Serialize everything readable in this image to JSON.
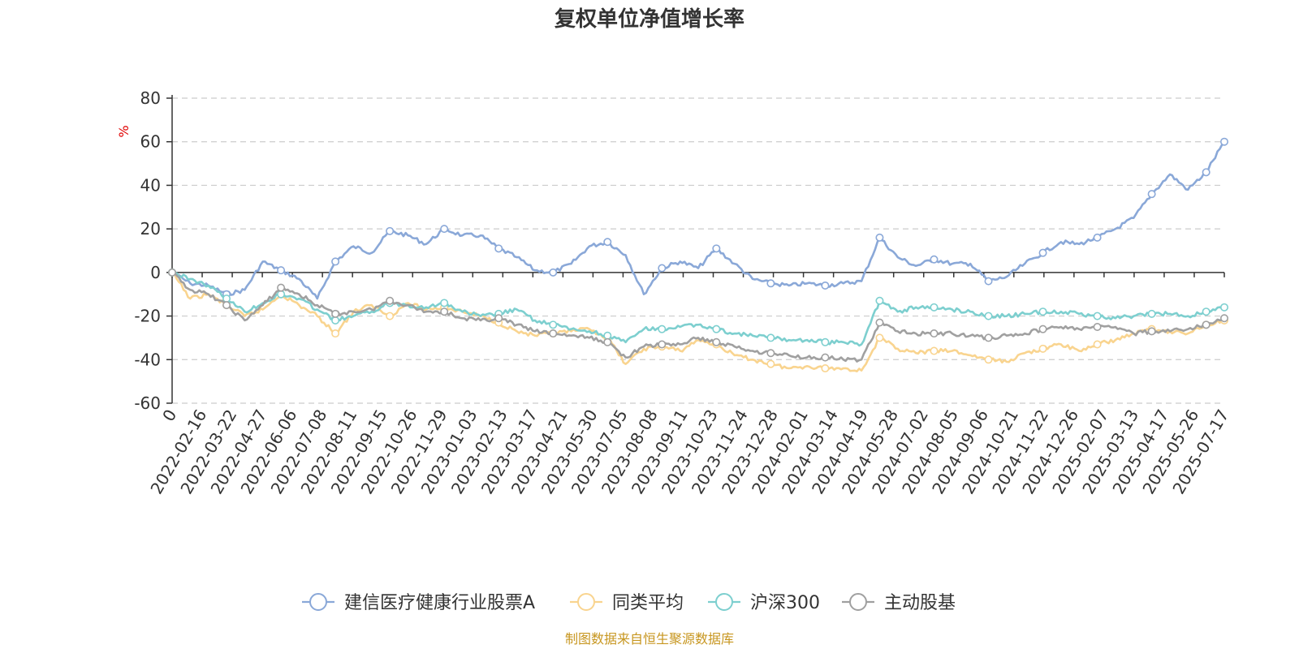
{
  "chart_data": {
    "type": "line",
    "title": "复权单位净值增长率",
    "ylabel": "%",
    "ylim": [
      -60,
      80
    ],
    "yticks": [
      80,
      60,
      40,
      20,
      0,
      -20,
      -40,
      -60
    ],
    "grid": true,
    "legend_position": "bottom",
    "source": "制图数据来自恒生聚源数据库",
    "x_labels": [
      "0",
      "2022-02-16",
      "2022-03-22",
      "2022-04-27",
      "2022-06-06",
      "2022-07-08",
      "2022-08-11",
      "2022-09-15",
      "2022-10-26",
      "2022-11-29",
      "2023-01-03",
      "2023-02-13",
      "2023-03-17",
      "2023-04-21",
      "2023-05-30",
      "2023-07-05",
      "2023-08-08",
      "2023-09-11",
      "2023-10-23",
      "2023-11-24",
      "2023-12-28",
      "2024-02-01",
      "2024-03-14",
      "2024-04-19",
      "2024-05-28",
      "2024-07-02",
      "2024-08-05",
      "2024-09-06",
      "2024-10-21",
      "2024-11-22",
      "2024-12-26",
      "2025-02-07",
      "2025-03-13",
      "2025-04-17",
      "2025-05-26",
      "2025-07-17"
    ],
    "series": [
      {
        "name": "建信医疗健康行业股票A",
        "color": "#8aa8d8",
        "values": [
          0,
          -5,
          -6,
          -10,
          -8,
          5,
          1,
          -3,
          -12,
          5,
          12,
          9,
          19,
          17,
          13,
          20,
          17,
          17,
          11,
          7,
          1,
          0,
          4,
          12,
          14,
          8,
          -10,
          2,
          5,
          2,
          11,
          4,
          -3,
          -5,
          -6,
          -5,
          -6,
          -5,
          -4,
          16,
          7,
          3,
          6,
          4,
          4,
          -4,
          -2,
          4,
          9,
          14,
          13,
          16,
          20,
          25,
          36,
          45,
          38,
          46,
          60
        ]
      },
      {
        "name": "同类平均",
        "color": "#f9d48f",
        "values": [
          0,
          -12,
          -10,
          -15,
          -20,
          -17,
          -10,
          -15,
          -20,
          -28,
          -18,
          -15,
          -20,
          -14,
          -17,
          -16,
          -18,
          -20,
          -23,
          -27,
          -29,
          -28,
          -27,
          -26,
          -30,
          -42,
          -35,
          -34,
          -36,
          -31,
          -33,
          -38,
          -40,
          -42,
          -44,
          -43,
          -44,
          -44,
          -45,
          -30,
          -35,
          -37,
          -36,
          -36,
          -38,
          -40,
          -41,
          -37,
          -35,
          -33,
          -36,
          -33,
          -31,
          -28,
          -26,
          -27,
          -28,
          -24,
          -22
        ]
      },
      {
        "name": "沪深300",
        "color": "#7dcfcf",
        "values": [
          0,
          -3,
          -6,
          -12,
          -18,
          -14,
          -10,
          -12,
          -17,
          -22,
          -20,
          -18,
          -14,
          -15,
          -16,
          -14,
          -18,
          -20,
          -19,
          -17,
          -22,
          -24,
          -26,
          -27,
          -29,
          -32,
          -26,
          -26,
          -25,
          -24,
          -26,
          -28,
          -29,
          -30,
          -31,
          -31,
          -32,
          -32,
          -33,
          -13,
          -18,
          -16,
          -16,
          -17,
          -18,
          -20,
          -20,
          -19,
          -18,
          -18,
          -19,
          -20,
          -21,
          -20,
          -19,
          -19,
          -20,
          -18,
          -16
        ]
      },
      {
        "name": "主动股基",
        "color": "#a0a0a0",
        "values": [
          0,
          -8,
          -10,
          -15,
          -22,
          -15,
          -7,
          -10,
          -15,
          -19,
          -18,
          -17,
          -13,
          -15,
          -18,
          -18,
          -21,
          -22,
          -21,
          -24,
          -27,
          -28,
          -29,
          -30,
          -32,
          -39,
          -34,
          -33,
          -33,
          -30,
          -32,
          -34,
          -36,
          -37,
          -38,
          -39,
          -39,
          -40,
          -40,
          -23,
          -27,
          -28,
          -28,
          -28,
          -29,
          -30,
          -29,
          -28,
          -26,
          -25,
          -26,
          -25,
          -25,
          -28,
          -27,
          -27,
          -26,
          -24,
          -21
        ]
      }
    ]
  }
}
